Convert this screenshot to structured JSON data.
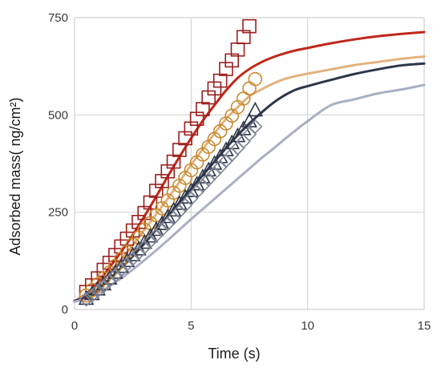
{
  "chart_data": {
    "type": "scatter",
    "title": "",
    "xlabel": "Time (s)",
    "ylabel": "Adsorbed mass( ng/cm²)",
    "xlim": [
      0,
      15
    ],
    "ylim": [
      0,
      750
    ],
    "xticks": [
      0,
      5,
      10,
      15
    ],
    "yticks": [
      0,
      250,
      500,
      750
    ],
    "grid": true,
    "legend": "none",
    "series": [
      {
        "kind": "line",
        "color": "#c0281a",
        "x": [
          0,
          0.5,
          1,
          1.5,
          2,
          2.5,
          3,
          3.5,
          4,
          4.5,
          5,
          5.5,
          6,
          6.5,
          7,
          7.5,
          8,
          8.5,
          9,
          9.5,
          10,
          11,
          12,
          13,
          14,
          15
        ],
        "y": [
          22,
          40,
          70,
          108,
          148,
          192,
          240,
          290,
          342,
          392,
          440,
          485,
          525,
          563,
          595,
          618,
          635,
          648,
          658,
          666,
          672,
          684,
          694,
          702,
          708,
          713
        ]
      },
      {
        "kind": "line",
        "color": "#e2b27e",
        "x": [
          0,
          0.5,
          1,
          1.5,
          2,
          2.5,
          3,
          3.5,
          4,
          4.5,
          5,
          5.5,
          6,
          6.5,
          7,
          7.5,
          8,
          8.5,
          9,
          9.5,
          10,
          11,
          12,
          13,
          14,
          15
        ],
        "y": [
          22,
          38,
          62,
          95,
          130,
          165,
          205,
          245,
          285,
          328,
          372,
          412,
          452,
          490,
          520,
          548,
          565,
          580,
          592,
          600,
          606,
          617,
          628,
          636,
          644,
          650
        ]
      },
      {
        "kind": "line",
        "color": "#2e3648",
        "x": [
          0,
          0.5,
          1,
          1.5,
          2,
          2.5,
          3,
          3.5,
          4,
          4.5,
          5,
          5.5,
          6,
          6.5,
          7,
          7.5,
          8,
          8.5,
          9,
          9.5,
          10,
          11,
          12,
          13,
          14,
          15
        ],
        "y": [
          22,
          33,
          52,
          78,
          107,
          137,
          170,
          205,
          240,
          275,
          310,
          345,
          380,
          415,
          448,
          478,
          505,
          530,
          550,
          565,
          574,
          590,
          605,
          617,
          627,
          632
        ]
      },
      {
        "kind": "line",
        "color": "#a9afc4",
        "x": [
          0,
          0.5,
          1,
          1.5,
          2,
          2.5,
          3,
          3.5,
          4,
          4.5,
          5,
          5.5,
          6,
          6.5,
          7,
          7.5,
          8,
          8.5,
          9,
          9.5,
          10,
          11,
          12,
          13,
          14,
          15
        ],
        "y": [
          20,
          28,
          42,
          60,
          80,
          103,
          127,
          152,
          178,
          205,
          232,
          258,
          284,
          310,
          336,
          362,
          388,
          412,
          437,
          461,
          484,
          525,
          540,
          555,
          565,
          577
        ]
      },
      {
        "kind": "markers",
        "marker": "square",
        "color": "#9c1f1f",
        "x": [
          0.5,
          0.75,
          1,
          1.25,
          1.5,
          1.75,
          2,
          2.25,
          2.5,
          2.75,
          3,
          3.25,
          3.5,
          3.75,
          4,
          4.25,
          4.5,
          4.75,
          5,
          5.25,
          5.5,
          5.75,
          6,
          6.25,
          6.5,
          6.75,
          7,
          7.25,
          7.5
        ],
        "y": [
          45,
          62,
          80,
          102,
          120,
          140,
          162,
          182,
          203,
          225,
          248,
          275,
          305,
          330,
          355,
          380,
          410,
          440,
          465,
          490,
          515,
          545,
          568,
          588,
          618,
          640,
          668,
          700,
          728
        ]
      },
      {
        "kind": "markers",
        "marker": "circle",
        "color": "#c98a2e",
        "x": [
          0.5,
          0.75,
          1,
          1.25,
          1.5,
          1.75,
          2,
          2.25,
          2.5,
          2.75,
          3,
          3.25,
          3.5,
          3.75,
          4,
          4.25,
          4.5,
          4.75,
          5,
          5.25,
          5.5,
          5.75,
          6,
          6.25,
          6.5,
          6.75,
          7,
          7.25,
          7.5,
          7.75
        ],
        "y": [
          36,
          50,
          65,
          80,
          95,
          112,
          130,
          148,
          167,
          185,
          205,
          222,
          242,
          260,
          280,
          300,
          318,
          338,
          358,
          378,
          398,
          418,
          438,
          458,
          478,
          498,
          520,
          542,
          568,
          592
        ]
      },
      {
        "kind": "markers",
        "marker": "triangle",
        "color": "#2e3648",
        "x": [
          0.5,
          0.75,
          1,
          1.25,
          1.5,
          1.75,
          2,
          2.25,
          2.5,
          2.75,
          3,
          3.25,
          3.5,
          3.75,
          4,
          4.25,
          4.5,
          4.75,
          5,
          5.25,
          5.5,
          5.75,
          6,
          6.25,
          6.5,
          6.75,
          7,
          7.25,
          7.5,
          7.75
        ],
        "y": [
          28,
          40,
          52,
          65,
          80,
          95,
          110,
          125,
          140,
          155,
          172,
          188,
          205,
          220,
          238,
          255,
          272,
          288,
          305,
          322,
          340,
          358,
          375,
          392,
          410,
          428,
          446,
          464,
          484,
          512
        ]
      },
      {
        "kind": "markers",
        "marker": "diamond",
        "color": "#7d8496",
        "x": [
          0.5,
          0.75,
          1,
          1.25,
          1.5,
          1.75,
          2,
          2.25,
          2.5,
          2.75,
          3,
          3.25,
          3.5,
          3.75,
          4,
          4.25,
          4.5,
          4.75,
          5,
          5.25,
          5.5,
          5.75,
          6,
          6.25,
          6.5,
          6.75,
          7,
          7.25,
          7.5,
          7.75
        ],
        "y": [
          26,
          36,
          48,
          60,
          74,
          88,
          102,
          116,
          130,
          145,
          160,
          175,
          190,
          205,
          220,
          235,
          252,
          268,
          285,
          302,
          318,
          334,
          350,
          366,
          382,
          398,
          415,
          432,
          450,
          470
        ]
      }
    ]
  }
}
